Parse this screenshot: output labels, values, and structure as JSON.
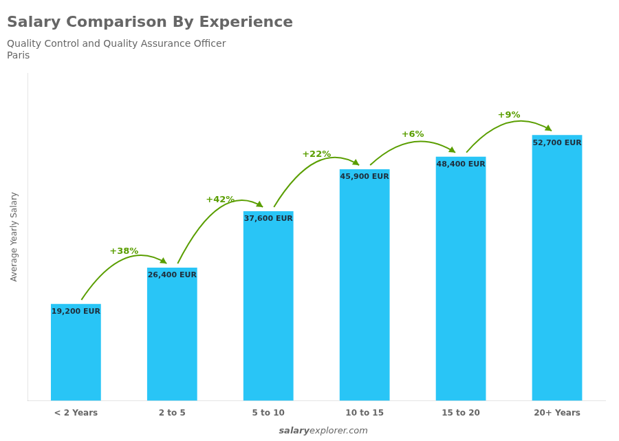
{
  "chart_data": {
    "type": "bar",
    "title": "Salary Comparison By Experience",
    "subtitle": [
      "Quality Control and Quality Assurance Officer",
      "Paris"
    ],
    "categories": [
      "< 2 Years",
      "2 to 5",
      "5 to 10",
      "10 to 15",
      "15 to 20",
      "20+ Years"
    ],
    "values": [
      19200,
      26400,
      37600,
      45900,
      48400,
      52700
    ],
    "value_labels": [
      "19,200 EUR",
      "26,400 EUR",
      "37,600 EUR",
      "45,900 EUR",
      "48,400 EUR",
      "52,700 EUR"
    ],
    "data_labels": true,
    "color": "#29c5f6",
    "ylabel": "Average Yearly Salary",
    "ylim": [
      0,
      65000
    ],
    "tick_labels": "x",
    "grid": false,
    "annotations": [
      {
        "text": "+38%",
        "between": [
          "< 2 Years",
          "2 to 5"
        ]
      },
      {
        "text": "+42%",
        "between": [
          "2 to 5",
          "5 to 10"
        ]
      },
      {
        "text": "+22%",
        "between": [
          "5 to 10",
          "10 to 15"
        ]
      },
      {
        "text": "+6%",
        "between": [
          "10 to 15",
          "15 to 20"
        ]
      },
      {
        "text": "+9%",
        "between": [
          "15 to 20",
          "20+ Years"
        ]
      }
    ],
    "watermark": [
      "salary",
      "explorer.com"
    ]
  }
}
